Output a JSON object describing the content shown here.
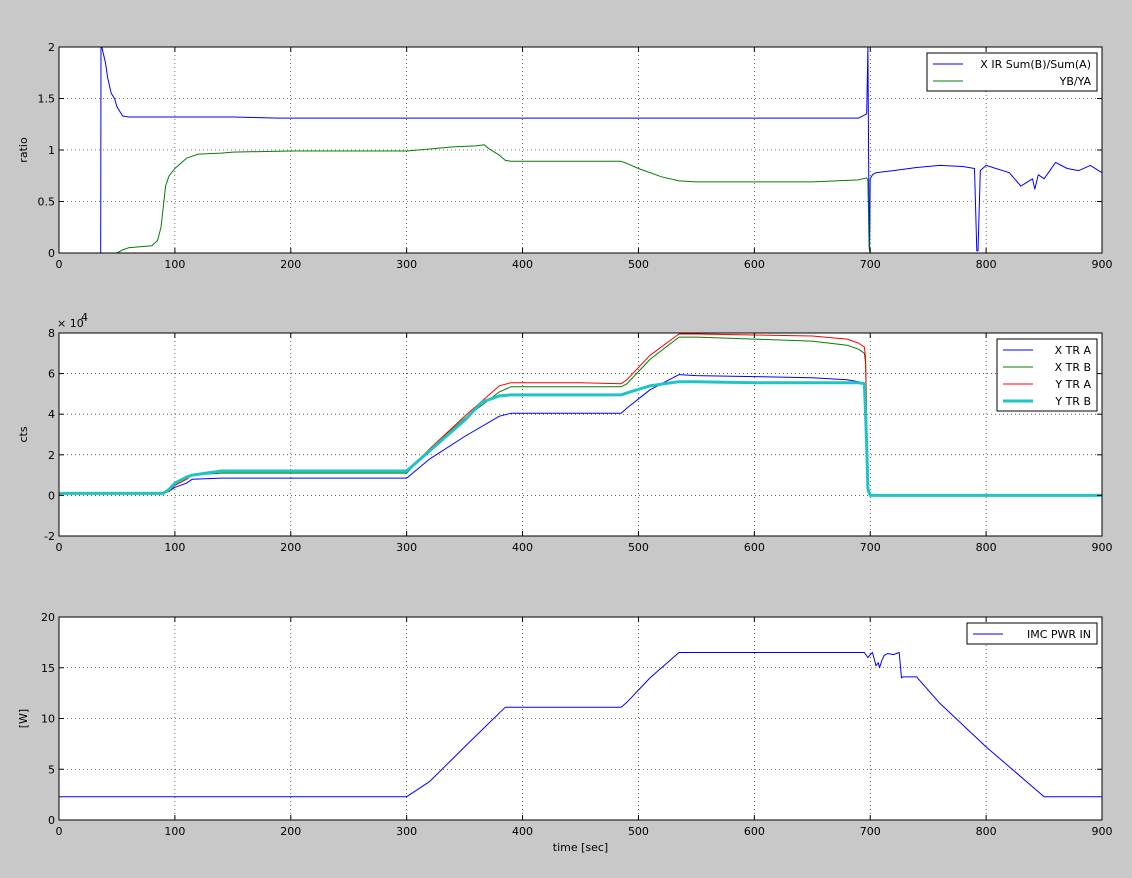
{
  "figure": {
    "background": "#c8c8c8"
  },
  "chart_data": [
    {
      "type": "line",
      "xlim": [
        0,
        900
      ],
      "ylim": [
        0,
        2
      ],
      "xticks": [
        0,
        100,
        200,
        300,
        400,
        500,
        600,
        700,
        800,
        900
      ],
      "yticks": [
        0,
        0.5,
        1,
        1.5,
        2
      ],
      "ytick_labels": [
        "0",
        "0.5",
        "1",
        "1.5",
        "2"
      ],
      "xlabel": "",
      "ylabel": "ratio",
      "grid": true,
      "legend_position": "top-right",
      "series": [
        {
          "name": "X IR Sum(B)/Sum(A)",
          "color": "#0000ff",
          "line_width": 1,
          "x": [
            0,
            36,
            36.2,
            37,
            38,
            40,
            42,
            45,
            48,
            50,
            55,
            60,
            100,
            150,
            190,
            250,
            300,
            400,
            500,
            600,
            690,
            697,
            698,
            699,
            699.5,
            700,
            701,
            702,
            705,
            720,
            740,
            760,
            780,
            790,
            792,
            793,
            795,
            797,
            800,
            820,
            830,
            840,
            842,
            845,
            850,
            860,
            870,
            880,
            890,
            900
          ],
          "y": [
            0,
            0,
            2,
            2,
            1.95,
            1.85,
            1.7,
            1.55,
            1.5,
            1.42,
            1.33,
            1.32,
            1.32,
            1.32,
            1.31,
            1.31,
            1.31,
            1.31,
            1.31,
            1.31,
            1.31,
            1.35,
            2,
            0.2,
            0.02,
            0.72,
            0.74,
            0.76,
            0.78,
            0.8,
            0.83,
            0.85,
            0.84,
            0.82,
            0.02,
            0.02,
            0.8,
            0.82,
            0.85,
            0.78,
            0.65,
            0.72,
            0.62,
            0.76,
            0.72,
            0.88,
            0.82,
            0.8,
            0.85,
            0.78
          ]
        },
        {
          "name": "YB/YA",
          "color": "#008000",
          "line_width": 1,
          "x": [
            0,
            50,
            55,
            60,
            70,
            80,
            85,
            88,
            90,
            92,
            95,
            100,
            110,
            120,
            140,
            150,
            200,
            250,
            300,
            320,
            340,
            360,
            367,
            370,
            380,
            385,
            390,
            450,
            485,
            490,
            500,
            520,
            535,
            550,
            600,
            650,
            690,
            697,
            698,
            699,
            700,
            710,
            900
          ],
          "y": [
            0,
            0,
            0.03,
            0.05,
            0.06,
            0.07,
            0.12,
            0.25,
            0.45,
            0.65,
            0.75,
            0.82,
            0.92,
            0.96,
            0.97,
            0.98,
            0.99,
            0.99,
            0.99,
            1.01,
            1.03,
            1.04,
            1.05,
            1.02,
            0.95,
            0.9,
            0.89,
            0.89,
            0.89,
            0.87,
            0.82,
            0.74,
            0.7,
            0.69,
            0.69,
            0.69,
            0.71,
            0.73,
            0.7,
            0.05,
            0,
            0,
            0
          ]
        }
      ]
    },
    {
      "type": "line",
      "xlim": [
        0,
        900
      ],
      "ylim": [
        -2,
        8
      ],
      "xticks": [
        0,
        100,
        200,
        300,
        400,
        500,
        600,
        700,
        800,
        900
      ],
      "yticks": [
        -2,
        0,
        2,
        4,
        6,
        8
      ],
      "ytick_labels": [
        "-2",
        "0",
        "2",
        "4",
        "6",
        "8"
      ],
      "y_multiplier": "× 10",
      "y_multiplier_exp": "4",
      "xlabel": "",
      "ylabel": "cts",
      "grid": true,
      "legend_position": "top-right",
      "series": [
        {
          "name": "X TR A",
          "color": "#0000ff",
          "line_width": 1,
          "x": [
            0,
            90,
            95,
            100,
            105,
            110,
            115,
            140,
            200,
            250,
            300,
            320,
            350,
            380,
            390,
            450,
            485,
            490,
            510,
            535,
            550,
            600,
            650,
            680,
            690,
            695,
            697,
            698,
            700,
            900
          ],
          "y": [
            0.1,
            0.1,
            0.2,
            0.4,
            0.5,
            0.6,
            0.8,
            0.85,
            0.85,
            0.85,
            0.85,
            1.8,
            2.9,
            3.9,
            4.05,
            4.05,
            4.05,
            4.3,
            5.2,
            5.95,
            5.9,
            5.85,
            5.8,
            5.7,
            5.6,
            5.5,
            2,
            0.2,
            0,
            0
          ]
        },
        {
          "name": "X TR B",
          "color": "#008000",
          "line_width": 1,
          "x": [
            0,
            90,
            95,
            100,
            110,
            115,
            140,
            200,
            250,
            300,
            320,
            350,
            380,
            390,
            450,
            485,
            490,
            510,
            535,
            550,
            600,
            650,
            680,
            690,
            695,
            696,
            697,
            698,
            700,
            900
          ],
          "y": [
            0.1,
            0.1,
            0.2,
            0.5,
            0.8,
            1.0,
            1.1,
            1.1,
            1.1,
            1.1,
            2.3,
            3.8,
            5.1,
            5.35,
            5.35,
            5.35,
            5.5,
            6.7,
            7.8,
            7.8,
            7.7,
            7.6,
            7.4,
            7.2,
            7.0,
            6.5,
            3.5,
            0.5,
            0,
            0
          ]
        },
        {
          "name": "Y TR A",
          "color": "#ff0000",
          "line_width": 1,
          "x": [
            0,
            90,
            95,
            100,
            110,
            115,
            140,
            200,
            250,
            300,
            320,
            350,
            380,
            390,
            450,
            485,
            490,
            510,
            535,
            550,
            600,
            650,
            680,
            690,
            695,
            696,
            697,
            698,
            700,
            900
          ],
          "y": [
            0.1,
            0.1,
            0.2,
            0.5,
            0.8,
            1.0,
            1.2,
            1.2,
            1.2,
            1.2,
            2.3,
            3.9,
            5.4,
            5.55,
            5.55,
            5.5,
            5.7,
            6.9,
            7.95,
            7.95,
            7.9,
            7.85,
            7.7,
            7.5,
            7.3,
            6.8,
            3.5,
            0.5,
            0,
            0
          ]
        },
        {
          "name": "Y TR B",
          "color": "#1fc4c4",
          "line_width": 3,
          "x": [
            0,
            90,
            95,
            100,
            110,
            115,
            140,
            200,
            250,
            300,
            320,
            350,
            365,
            380,
            390,
            450,
            485,
            490,
            510,
            535,
            550,
            600,
            650,
            690,
            695,
            697,
            698,
            700,
            900
          ],
          "y": [
            0.1,
            0.1,
            0.3,
            0.6,
            0.9,
            1.0,
            1.2,
            1.2,
            1.2,
            1.2,
            2.2,
            3.7,
            4.6,
            4.9,
            4.95,
            4.95,
            4.95,
            5.05,
            5.4,
            5.6,
            5.6,
            5.55,
            5.55,
            5.55,
            5.5,
            2.5,
            0.3,
            0,
            0
          ]
        }
      ]
    },
    {
      "type": "line",
      "xlim": [
        0,
        900
      ],
      "ylim": [
        0,
        20
      ],
      "xticks": [
        0,
        100,
        200,
        300,
        400,
        500,
        600,
        700,
        800,
        900
      ],
      "yticks": [
        0,
        5,
        10,
        15,
        20
      ],
      "ytick_labels": [
        "0",
        "5",
        "10",
        "15",
        "20"
      ],
      "xlabel": "time [sec]",
      "ylabel": "[W]",
      "grid": true,
      "legend_position": "top-right",
      "series": [
        {
          "name": "IMC PWR IN",
          "color": "#0000ff",
          "line_width": 1,
          "x": [
            0,
            300,
            320,
            350,
            385,
            390,
            450,
            485,
            490,
            510,
            535,
            600,
            650,
            695,
            698,
            700,
            702,
            705,
            707,
            708,
            710,
            712,
            715,
            720,
            725,
            727,
            728,
            730,
            740,
            760,
            800,
            850,
            860,
            900
          ],
          "y": [
            2.3,
            2.3,
            3.8,
            7.2,
            11.1,
            11.1,
            11.1,
            11.1,
            11.6,
            14.0,
            16.5,
            16.5,
            16.5,
            16.5,
            16.0,
            16.3,
            16.5,
            15.2,
            15.5,
            15.0,
            15.7,
            16.2,
            16.4,
            16.3,
            16.5,
            14.0,
            14.1,
            14.1,
            14.1,
            11.5,
            7.2,
            2.3,
            2.3,
            2.3
          ]
        }
      ]
    }
  ]
}
